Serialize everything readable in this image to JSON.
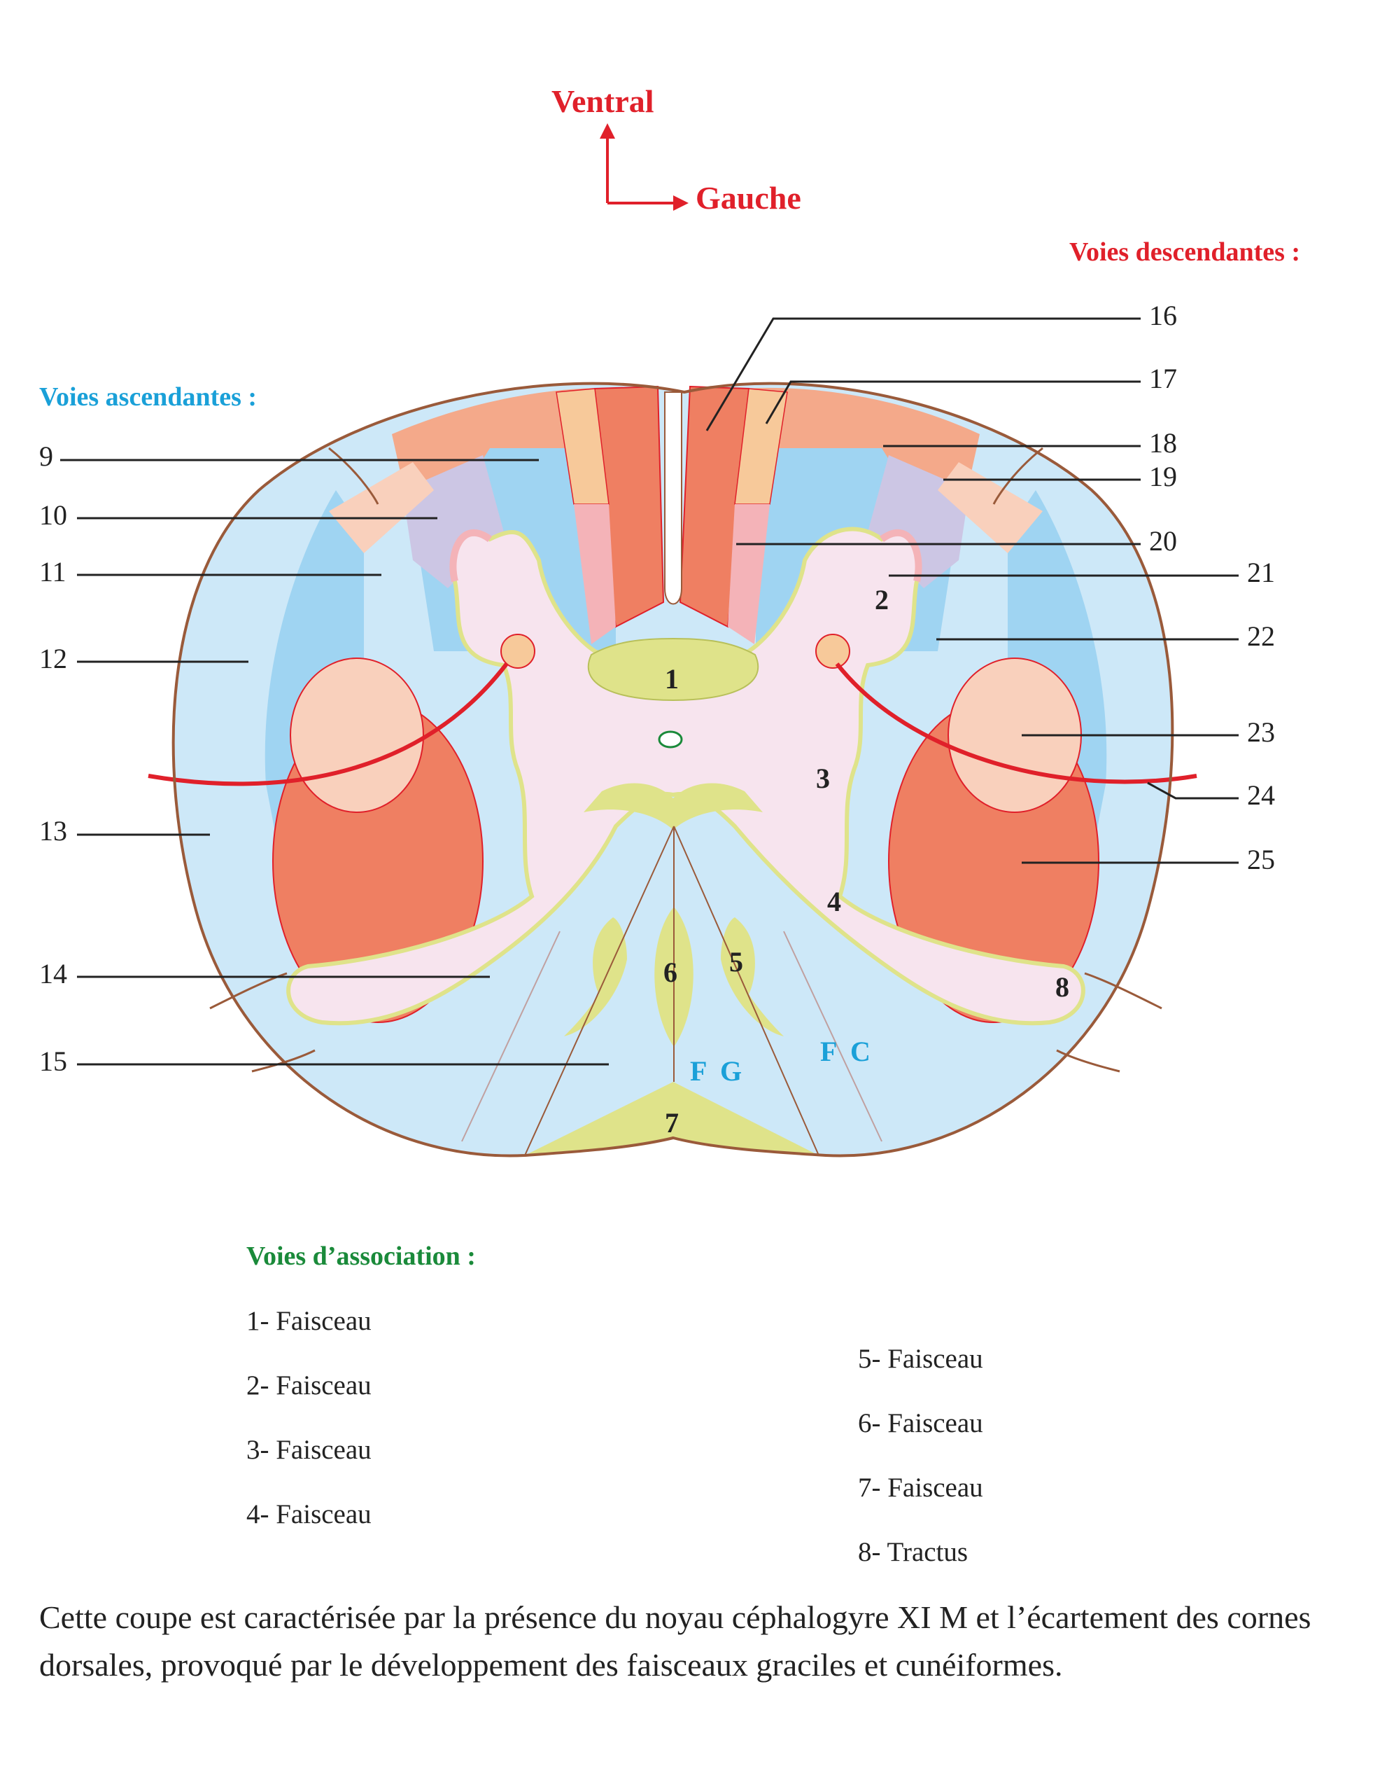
{
  "orientation": {
    "ventral": "Ventral",
    "gauche": "Gauche"
  },
  "headings": {
    "descendantes": "Voies descendantes :",
    "ascendantes": "Voies ascendantes :",
    "association": "Voies d’association :"
  },
  "left_labels": [
    "9",
    "10",
    "11",
    "12",
    "13",
    "14",
    "15"
  ],
  "right_labels": [
    "16",
    "17",
    "18",
    "19",
    "20",
    "21",
    "22",
    "23",
    "24",
    "25"
  ],
  "inner_labels": {
    "n1": "1",
    "n2": "2",
    "n3": "3",
    "n4": "4",
    "n5": "5",
    "n6": "6",
    "n7": "7",
    "n8": "8"
  },
  "fasciculus_labels": {
    "fg": "F G",
    "fc": "F C"
  },
  "legend_left": [
    "1- Faisceau",
    "2- Faisceau",
    "3- Faisceau",
    "4- Faisceau"
  ],
  "legend_right": [
    "5- Faisceau",
    "6- Faisceau",
    "7- Faisceau",
    "8- Tractus"
  ],
  "caption": "Cette coupe est caractérisée par la présence du noyau céphalogyre XI M et l’écartement des cornes dorsales, provoqué par le développement des faisceaux graciles et cunéiformes.",
  "colors": {
    "red_text": "#e0202a",
    "blue_text": "#1aa0d8",
    "green_text": "#1a8a3a",
    "outline": "#9a5a3a",
    "light_blue": "#cde8f8",
    "mid_blue": "#9fd4f2",
    "salmon": "#ef7f62",
    "peach": "#f9d0bc",
    "tan": "#f7c99a",
    "lavender": "#ccc6e4",
    "gray_pink": "#f7e4ee",
    "yellow_green": "#dfe38a",
    "orange_bar": "#f08a24"
  }
}
